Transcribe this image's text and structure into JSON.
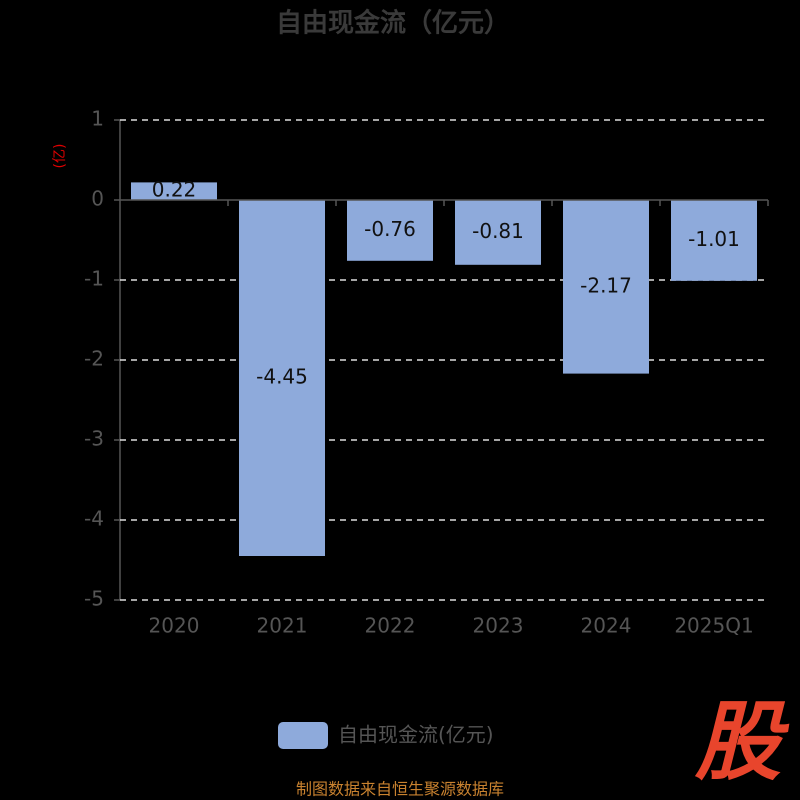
{
  "chart_data": {
    "type": "bar",
    "title": "自由现金流（亿元）",
    "y_label": "(亿)",
    "categories": [
      "2020",
      "2021",
      "2022",
      "2023",
      "2024",
      "2025Q1"
    ],
    "series": [
      {
        "name": "自由现金流(亿元)",
        "color": "#8eaadb",
        "values": [
          0.22,
          -4.45,
          -0.76,
          -0.81,
          -2.17,
          -1.01
        ]
      }
    ],
    "ylim": [
      -5,
      1
    ],
    "yticks": [
      -5,
      -4,
      -3,
      -2,
      -1,
      0,
      1
    ],
    "grid": true
  },
  "footer": "制图数据来自恒生聚源数据库",
  "watermark": "股"
}
